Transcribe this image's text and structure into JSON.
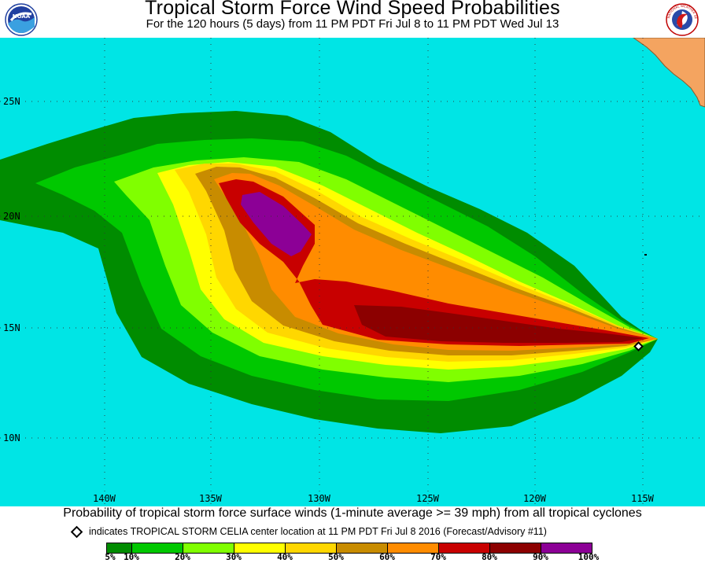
{
  "header": {
    "title": "Tropical Storm Force Wind Speed Probabilities",
    "subtitle": "For the 120 hours (5 days) from 11 PM PDT Fri Jul 8 to 11 PM PDT Wed Jul 13",
    "left_logo_text": "NOAA",
    "right_logo_text": "NATIONAL WEATHER SERVICE"
  },
  "map": {
    "lat_labels": [
      "25N",
      "20N",
      "15N",
      "10N"
    ],
    "lon_labels": [
      "140W",
      "135W",
      "130W",
      "125W",
      "120W",
      "115W"
    ],
    "ocean_color": "#00e5e5",
    "land_color": "#f4a460",
    "storm_marker": "storm-center-diamond"
  },
  "footer": {
    "caption": "Probability of tropical storm force surface winds (1-minute average >= 39 mph) from all tropical cyclones",
    "note": "indicates TROPICAL STORM CELIA center location at 11 PM PDT Fri Jul 8 2016 (Forecast/Advisory #11)",
    "legend": [
      {
        "label": "5%",
        "color": "#008c00"
      },
      {
        "label": "10%",
        "color": "#00c800"
      },
      {
        "label": "20%",
        "color": "#80ff00"
      },
      {
        "label": "30%",
        "color": "#ffff00"
      },
      {
        "label": "40%",
        "color": "#ffd700"
      },
      {
        "label": "50%",
        "color": "#c88c00"
      },
      {
        "label": "60%",
        "color": "#ff8c00"
      },
      {
        "label": "70%",
        "color": "#c80000"
      },
      {
        "label": "80%",
        "color": "#8c0000"
      },
      {
        "label": "90%",
        "color": "#8c0096"
      }
    ],
    "legend_end_label": "100%"
  }
}
